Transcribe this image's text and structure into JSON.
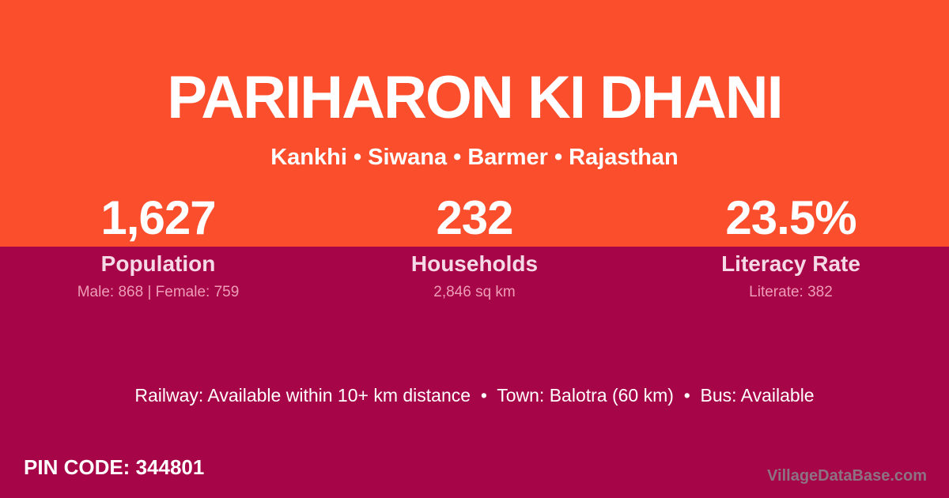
{
  "colors": {
    "top_background": "#fb4e2c",
    "bottom_background": "#a60647",
    "text_primary": "#ffffff",
    "stat_label": "#f6d9e6",
    "stat_detail": "#ee9cb7",
    "watermark": "#8d7282"
  },
  "header": {
    "title": "PARIHARON KI DHANI",
    "breadcrumb": {
      "items": [
        "Kankhi",
        "Siwana",
        "Barmer",
        "Rajasthan"
      ],
      "separator": "•",
      "text": "Kankhi • Siwana • Barmer • Rajasthan"
    }
  },
  "stats": [
    {
      "value": "1,627",
      "label": "Population",
      "detail": "Male: 868 | Female: 759"
    },
    {
      "value": "232",
      "label": "Households",
      "detail": "2,846 sq km"
    },
    {
      "value": "23.5%",
      "label": "Literacy Rate",
      "detail": "Literate: 382"
    }
  ],
  "transport": {
    "segments": [
      {
        "label": "Railway",
        "value": "Available within 10+ km distance"
      },
      {
        "label": "Town",
        "value": "Balotra (60 km)"
      },
      {
        "label": "Bus",
        "value": "Available"
      }
    ],
    "separator": "•",
    "text": "Railway: Available within 10+ km distance  •  Town: Balotra (60 km)  •  Bus: Available"
  },
  "footer": {
    "pin_code_text": "PIN CODE: 344801",
    "pin_code_label": "PIN CODE:",
    "pin_code_value": "344801",
    "watermark": "VillageDataBase.com"
  }
}
